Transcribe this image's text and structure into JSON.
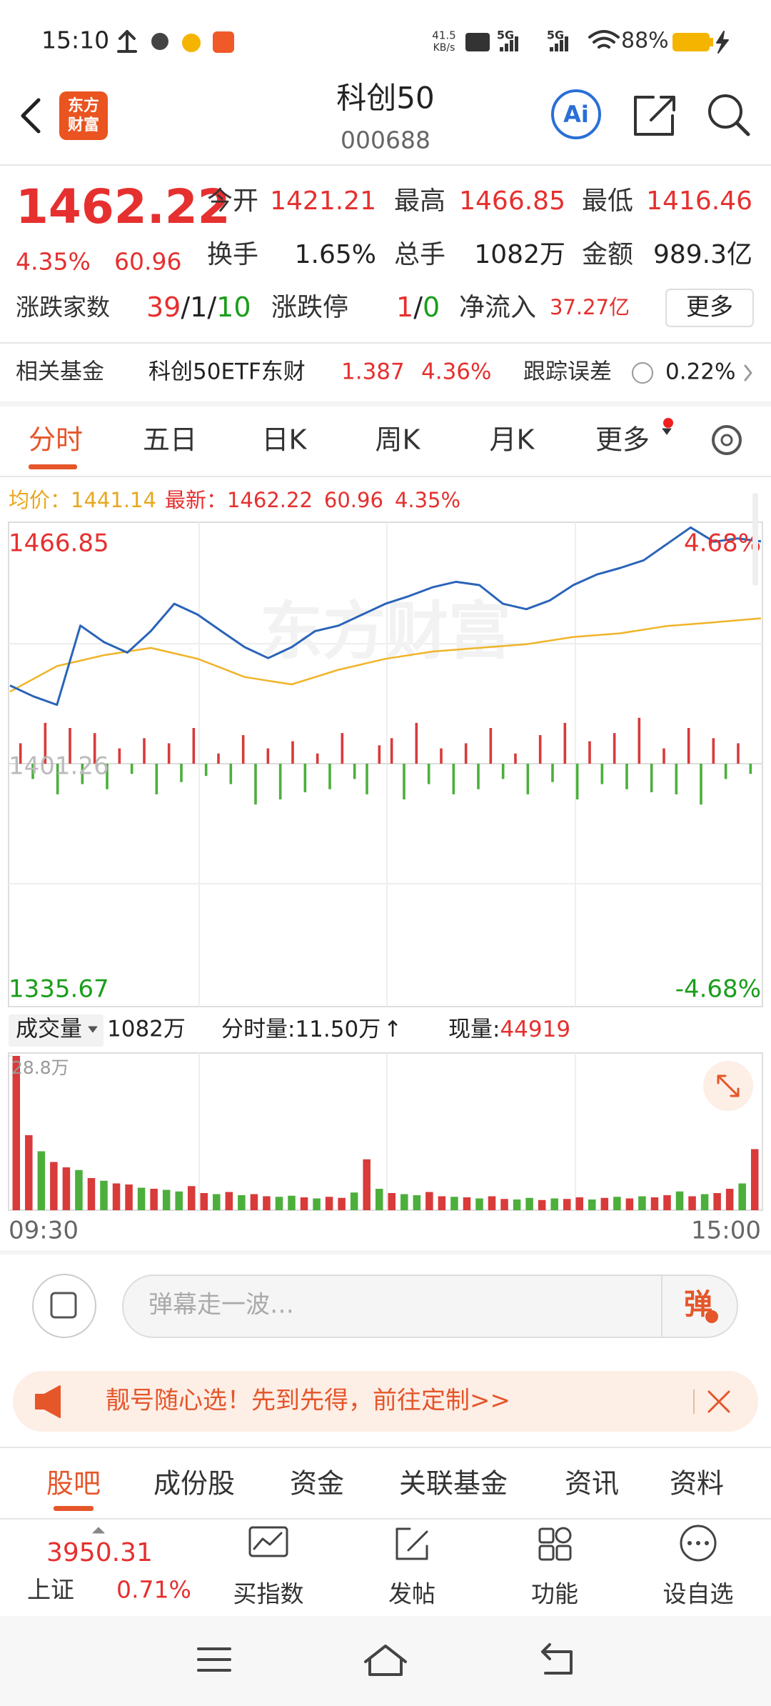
{
  "status_bar": {
    "time": "15:10",
    "net_speed": "41.5",
    "net_unit": "KB/s",
    "signal_1": "5G",
    "signal_2": "5G",
    "battery": "88%"
  },
  "header": {
    "logo": [
      "东方",
      "财富"
    ],
    "title": "科创50",
    "code": "000688",
    "ai": "Ai"
  },
  "quote": {
    "price": "1462.22",
    "change_pct": "4.35%",
    "change": "60.96",
    "fields": [
      {
        "label": "今开",
        "value": "1421.21"
      },
      {
        "label": "最高",
        "value": "1466.85"
      },
      {
        "label": "最低",
        "value": "1416.46"
      },
      {
        "label": "换手",
        "value": "1.65%"
      },
      {
        "label": "总手",
        "value": "1082万"
      },
      {
        "label": "金额",
        "value": "989.3亿"
      }
    ],
    "advance_decline": {
      "label": "涨跌家数",
      "up": "39",
      "flat": "1",
      "down": "10",
      "separator": "/"
    },
    "limit": {
      "label": "涨跌停",
      "up": "1",
      "down": "0"
    },
    "net_inflow": {
      "label": "净流入",
      "value": "37.27亿"
    },
    "more": "更多"
  },
  "fund": {
    "label": "相关基金",
    "name": "科创50ETF东财",
    "price": "1.387",
    "change_pct": "4.36%",
    "tracking_label": "跟踪误差",
    "tracking_error": "0.22%"
  },
  "tabs": {
    "items": [
      "分时",
      "五日",
      "日K",
      "周K",
      "月K",
      "更多"
    ],
    "active": 0
  },
  "intraday": {
    "avg_label": "均价：",
    "avg": "1441.14",
    "latest_label": "最新：",
    "latest": "1462.22",
    "change": "60.96",
    "change_pct": "4.35%",
    "watermark": "东方财富",
    "ylim": [
      1335.67,
      1466.85
    ],
    "base": 1401.26,
    "high_pct": "4.68%",
    "low_pct": "-4.68%",
    "price_color": "#2a64b8",
    "avg_color": "#f0b429",
    "price": [
      1422.7,
      1419.7,
      1417.4,
      1439.1,
      1434.6,
      1431.7,
      1437.6,
      1445.1,
      1442.1,
      1437.6,
      1433.2,
      1430.2,
      1433.2,
      1437.6,
      1439.1,
      1442.1,
      1445.1,
      1447.2,
      1449.6,
      1451.1,
      1450.2,
      1445.1,
      1443.6,
      1446.0,
      1450.2,
      1453.1,
      1454.9,
      1457.0,
      1461.5,
      1466.0,
      1462.1,
      1463.0,
      1462.2
    ],
    "avg_line": [
      1421,
      1428,
      1431,
      1433,
      1430,
      1425,
      1423,
      1427,
      1430,
      1432,
      1433,
      1434,
      1436,
      1437,
      1439,
      1440,
      1441.1
    ],
    "breadth_lim": [
      -70,
      70
    ],
    "breadth_bars": [
      20,
      -15,
      40,
      -30,
      35,
      -20,
      30,
      -25,
      15,
      -10,
      25,
      -30,
      20,
      -18,
      35,
      -12,
      10,
      -20,
      28,
      -40,
      15,
      -35,
      22,
      -28,
      10,
      -25,
      30,
      -15,
      -30,
      18,
      25,
      -35,
      40,
      -20,
      15,
      -30,
      20,
      -25,
      35,
      -15,
      10,
      -30,
      28,
      -18,
      40,
      -35,
      22,
      -20,
      30,
      -25,
      45,
      -28,
      15,
      -30,
      35,
      -40,
      25,
      -15,
      20,
      -10
    ]
  },
  "volume": {
    "label": "成交量",
    "total": "1082万",
    "minute_label": "分时量:11.50万",
    "arrow": "↑",
    "current_label": "现量:",
    "current": "44919",
    "ylim": [
      0,
      28.8
    ],
    "yticks": [
      {
        "value": 28.8,
        "label": "28.8万"
      }
    ],
    "values": [
      28.8,
      14,
      11,
      9,
      8,
      7.5,
      6,
      5.5,
      5,
      4.8,
      4.2,
      4,
      3.8,
      3.5,
      4.5,
      3.2,
      3,
      3.4,
      2.8,
      3,
      2.6,
      2.5,
      2.7,
      2.4,
      2.2,
      2.5,
      2.3,
      3.3,
      9.5,
      4,
      3.2,
      3,
      2.8,
      3.4,
      2.6,
      2.5,
      2.4,
      2.2,
      2.6,
      2.1,
      2,
      2.3,
      1.9,
      2.2,
      2.1,
      2.4,
      2,
      2.3,
      2.5,
      2.2,
      2.6,
      2.4,
      2.8,
      3.5,
      2.6,
      3,
      3.2,
      4,
      5,
      11.4
    ],
    "up": [
      true,
      true,
      false,
      true,
      true,
      false,
      true,
      false,
      true,
      true,
      false,
      true,
      false,
      false,
      true,
      true,
      false,
      true,
      false,
      true,
      true,
      false,
      false,
      true,
      false,
      true,
      true,
      false,
      true,
      false,
      true,
      false,
      false,
      true,
      true,
      false,
      true,
      false,
      true,
      true,
      false,
      false,
      true,
      false,
      true,
      true,
      false,
      true,
      false,
      true,
      false,
      true,
      true,
      false,
      true,
      false,
      true,
      true,
      false,
      true
    ],
    "time_start": "09:30",
    "time_end": "15:00"
  },
  "comment": {
    "placeholder": "弹幕走一波…",
    "button": "弹"
  },
  "banner": {
    "text": "靓号随心选！先到先得，前往定制>>"
  },
  "bottom_tabs": {
    "items": [
      "股吧",
      "成份股",
      "资金",
      "关联基金",
      "资讯",
      "资料"
    ],
    "active": 0
  },
  "footer": {
    "index_value": "3950.31",
    "index_name": "上证",
    "index_change": "0.71%",
    "actions": [
      "买指数",
      "发帖",
      "功能",
      "设自选"
    ]
  }
}
